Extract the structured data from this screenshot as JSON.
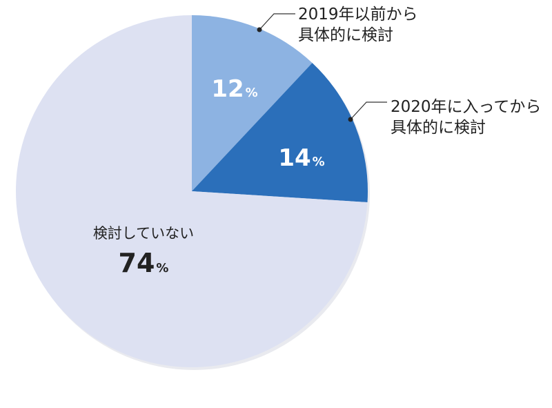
{
  "chart_data": {
    "type": "pie",
    "slices": [
      {
        "label_lines": [
          "2019年以前から",
          "具体的に検討"
        ],
        "value": 12,
        "value_text": "12",
        "unit": "%",
        "color": "#8db3e2"
      },
      {
        "label_lines": [
          "2020年に入ってから",
          "具体的に検討"
        ],
        "value": 14,
        "value_text": "14",
        "unit": "%",
        "color": "#2b6fba"
      },
      {
        "label_lines": [
          "検討していない"
        ],
        "value": 74,
        "value_text": "74",
        "unit": "%",
        "color": "#dde1f2"
      }
    ],
    "start": "12 o'clock",
    "direction": "clockwise"
  }
}
